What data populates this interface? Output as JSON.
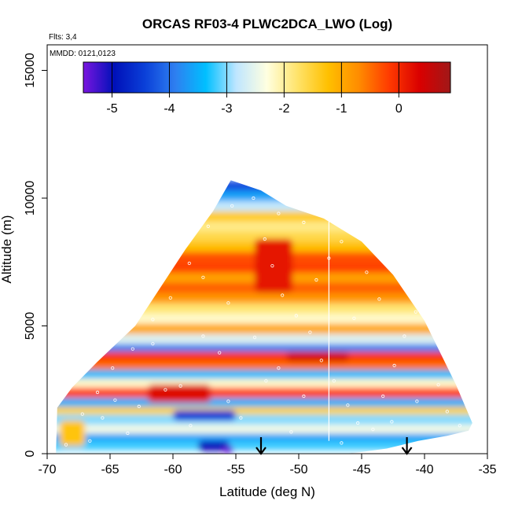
{
  "chart_data": {
    "type": "heatmap",
    "title": "ORCAS RF03-4 PLWC2DCA_LWO (Log)",
    "xlabel": "Latitude (deg N)",
    "ylabel": "Altitude (m)",
    "xlim": [
      -70,
      -35
    ],
    "ylim": [
      0,
      16000
    ],
    "x_ticks": [
      -70,
      -65,
      -60,
      -55,
      -50,
      -45,
      -40,
      -35
    ],
    "y_ticks": [
      0,
      5000,
      10000,
      15000
    ],
    "flights_note": "Flts: 3,4",
    "date_note": "MMDD: 0121,0123",
    "colorbar": {
      "ticks": [
        -5,
        -4,
        -3,
        -2,
        -1,
        0
      ],
      "range": [
        -5.5,
        0.9
      ],
      "colors": [
        "#7a16e0",
        "#0010b8",
        "#0a3fd8",
        "#2e7ff0",
        "#00bfff",
        "#bfe6ff",
        "#ffffe0",
        "#ffe36a",
        "#ffc000",
        "#ff8c00",
        "#ff3a00",
        "#d90000",
        "#a01818"
      ]
    },
    "domain_outline": [
      [
        -69.3,
        0
      ],
      [
        -69.2,
        1800
      ],
      [
        -68,
        2600
      ],
      [
        -66,
        3600
      ],
      [
        -63,
        5000
      ],
      [
        -61,
        6500
      ],
      [
        -59,
        8000
      ],
      [
        -56.8,
        9500
      ],
      [
        -55.4,
        10700
      ],
      [
        -53,
        10300
      ],
      [
        -51,
        9700
      ],
      [
        -48,
        9200
      ],
      [
        -45,
        8300
      ],
      [
        -42.5,
        7000
      ],
      [
        -40,
        5200
      ],
      [
        -37.5,
        2700
      ],
      [
        -36.2,
        1200
      ],
      [
        -36.5,
        900
      ],
      [
        -38.2,
        700
      ],
      [
        -40.5,
        500
      ],
      [
        -43,
        200
      ],
      [
        -46,
        0
      ]
    ],
    "layers": [
      {
        "y": [
          150,
          500
        ],
        "value": -3.2
      },
      {
        "y": [
          500,
          800
        ],
        "value": -3.6
      },
      {
        "y": [
          800,
          1150
        ],
        "value": -2.4
      },
      {
        "y": [
          1150,
          1550
        ],
        "value": -3.0
      },
      {
        "y": [
          1550,
          1850
        ],
        "value": -1.5
      },
      {
        "y": [
          1850,
          2200
        ],
        "value": -3.5
      },
      {
        "y": [
          2200,
          2600
        ],
        "value": -0.2
      },
      {
        "y": [
          2600,
          2950
        ],
        "value": -2.2
      },
      {
        "y": [
          2950,
          3300
        ],
        "value": -3.4
      },
      {
        "y": [
          3300,
          3650
        ],
        "value": -0.5
      },
      {
        "y": [
          3650,
          4000
        ],
        "value": -0.1
      },
      {
        "y": [
          4000,
          4300
        ],
        "value": -3.9
      },
      {
        "y": [
          4300,
          4700
        ],
        "value": -2.6
      },
      {
        "y": [
          4700,
          5100
        ],
        "value": -1.0
      },
      {
        "y": [
          5100,
          5500
        ],
        "value": -2.2
      },
      {
        "y": [
          5500,
          5900
        ],
        "value": -1.8
      },
      {
        "y": [
          5900,
          6300
        ],
        "value": -0.8
      },
      {
        "y": [
          6300,
          6700
        ],
        "value": -0.4
      },
      {
        "y": [
          6700,
          7100
        ],
        "value": -0.9
      },
      {
        "y": [
          7100,
          7500
        ],
        "value": -0.2
      },
      {
        "y": [
          7500,
          7900
        ],
        "value": -0.3
      },
      {
        "y": [
          7900,
          8300
        ],
        "value": -1.2
      },
      {
        "y": [
          8300,
          8700
        ],
        "value": -1.6
      },
      {
        "y": [
          8700,
          9100
        ],
        "value": -1.9
      },
      {
        "y": [
          9100,
          9500
        ],
        "value": -1.4
      },
      {
        "y": [
          9500,
          9900
        ],
        "value": -2.8
      },
      {
        "y": [
          9900,
          10300
        ],
        "value": -3.6
      },
      {
        "y": [
          10300,
          10700
        ],
        "value": -4.3
      }
    ],
    "patches": [
      {
        "x": [
          -62,
          -57
        ],
        "y": [
          2000,
          2700
        ],
        "value": 0.3
      },
      {
        "x": [
          -51,
          -46
        ],
        "y": [
          3600,
          4000
        ],
        "value": 0.4
      },
      {
        "x": [
          -53.5,
          -50.5
        ],
        "y": [
          6300,
          8400
        ],
        "value": 0.2
      },
      {
        "x": [
          -69,
          -67
        ],
        "y": [
          300,
          1300
        ],
        "value": -1.3
      },
      {
        "x": [
          -58,
          -55.5
        ],
        "y": [
          100,
          500
        ],
        "value": -5.0
      },
      {
        "x": [
          -56,
          -55.2
        ],
        "y": [
          0,
          300
        ],
        "value": -5.4
      },
      {
        "x": [
          -60,
          -55
        ],
        "y": [
          1300,
          1700
        ],
        "value": -4.5
      }
    ],
    "points": [
      [
        -68.5,
        350
      ],
      [
        -67.2,
        1550
      ],
      [
        -66,
        2400
      ],
      [
        -64.8,
        3350
      ],
      [
        -63.2,
        4100
      ],
      [
        -61.6,
        5250
      ],
      [
        -60.2,
        6100
      ],
      [
        -58.7,
        7450
      ],
      [
        -57.2,
        8900
      ],
      [
        -55.3,
        9700
      ],
      [
        -53.6,
        10000
      ],
      [
        -52.7,
        8400
      ],
      [
        -52.1,
        7350
      ],
      [
        -51.3,
        6200
      ],
      [
        -50.2,
        5400
      ],
      [
        -49.1,
        4750
      ],
      [
        -48.2,
        3650
      ],
      [
        -47.2,
        2850
      ],
      [
        -46.1,
        1900
      ],
      [
        -45.3,
        1200
      ],
      [
        -44.1,
        950
      ],
      [
        -43.3,
        2250
      ],
      [
        -42.4,
        3450
      ],
      [
        -41.6,
        4600
      ],
      [
        -40.7,
        5550
      ],
      [
        -39.8,
        6400
      ],
      [
        -38.9,
        2700
      ],
      [
        -38.2,
        1650
      ],
      [
        -37.2,
        1100
      ],
      [
        -62.7,
        1850
      ],
      [
        -59.4,
        2650
      ],
      [
        -56.3,
        3950
      ],
      [
        -53.5,
        4550
      ],
      [
        -51.6,
        3350
      ],
      [
        -49.6,
        2250
      ],
      [
        -48.6,
        6800
      ],
      [
        -47.6,
        7650
      ],
      [
        -46.6,
        8300
      ],
      [
        -44.6,
        7100
      ],
      [
        -43.6,
        6050
      ],
      [
        -55.6,
        5900
      ],
      [
        -57.6,
        6900
      ],
      [
        -60.6,
        2500
      ],
      [
        -65.6,
        1400
      ],
      [
        -66.6,
        500
      ],
      [
        -63.6,
        800
      ],
      [
        -58.6,
        1100
      ],
      [
        -54.6,
        1400
      ],
      [
        -50.6,
        850
      ],
      [
        -46.6,
        420
      ],
      [
        -49.6,
        9050
      ],
      [
        -51.6,
        9400
      ],
      [
        -45.6,
        5300
      ],
      [
        -42.6,
        1250
      ],
      [
        -40.6,
        2050
      ],
      [
        -61.6,
        4300
      ],
      [
        -64.6,
        2100
      ],
      [
        -52.6,
        2850
      ],
      [
        -55.6,
        2050
      ],
      [
        -57.6,
        4600
      ]
    ],
    "vertical_line_x": -47.6,
    "arrows_x": [
      -53,
      -41.4
    ]
  }
}
